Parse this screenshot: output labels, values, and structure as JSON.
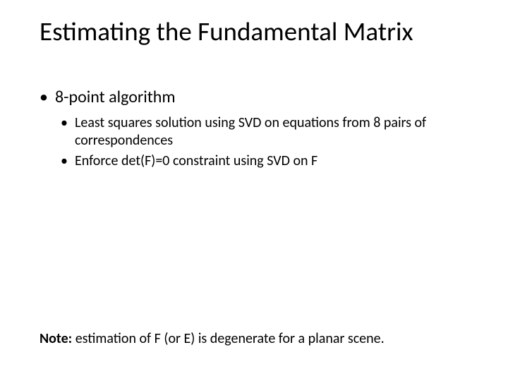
{
  "title": "Estimating the Fundamental Matrix",
  "bullets": {
    "main": "8-point algorithm",
    "sub1": "Least squares solution using SVD on equations from 8 pairs of correspondences",
    "sub2": "Enforce det(F)=0 constraint using SVD on F"
  },
  "note": {
    "label": "Note:",
    "text": " estimation of F (or E) is degenerate for a planar scene."
  },
  "styling": {
    "background_color": "#ffffff",
    "text_color": "#000000",
    "title_fontsize": 37,
    "bullet_l1_fontsize": 24,
    "bullet_l2_fontsize": 20,
    "note_fontsize": 20,
    "font_family": "Calibri"
  }
}
